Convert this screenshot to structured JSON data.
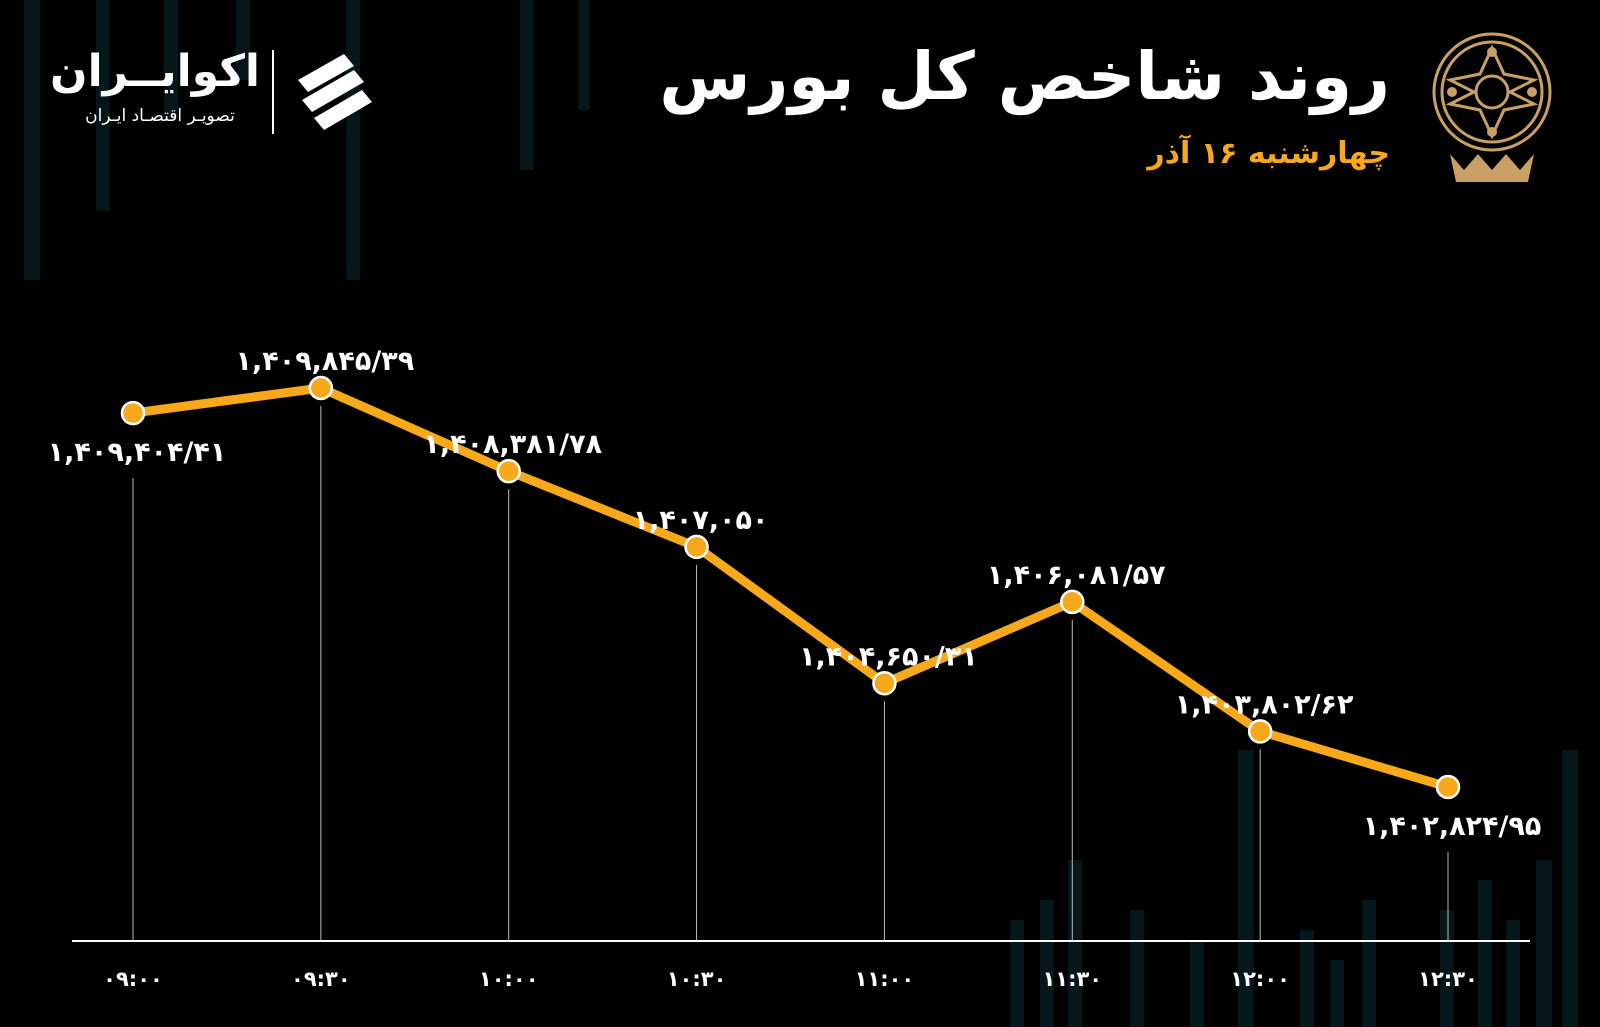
{
  "header": {
    "title": "روند شاخص کل بورس",
    "date": "چهارشنبه ۱۶ آذر"
  },
  "brand": {
    "name": "اکوایــران",
    "tagline": "تصویـر اقتصـاد ایـران",
    "logo_icon": "ecoiran-logo-icon",
    "emblem_icon": "tehran-stock-exchange-emblem-icon"
  },
  "colors": {
    "accent": "#f7a81b",
    "background": "#000000",
    "text": "#ffffff"
  },
  "chart_data": {
    "type": "line",
    "title": "روند شاخص کل بورس",
    "x": [
      "۰۹:۰۰",
      "۰۹:۳۰",
      "۱۰:۰۰",
      "۱۰:۳۰",
      "۱۱:۰۰",
      "۱۱:۳۰",
      "۱۲:۰۰",
      "۱۲:۳۰"
    ],
    "series": [
      {
        "values": [
          1409404.41,
          1409845.39,
          1408381.78,
          1407050,
          1404650.31,
          1406081.57,
          1403802.62,
          1402824.95
        ],
        "labels": [
          "۱,۴۰۹,۴۰۴/۴۱",
          "۱,۴۰۹,۸۴۵/۳۹",
          "۱,۴۰۸,۳۸۱/۷۸",
          "۱,۴۰۷,۰۵۰",
          "۱,۴۰۴,۶۵۰/۳۱",
          "۱,۴۰۶,۰۸۱/۵۷",
          "۱,۴۰۳,۸۰۲/۶۲",
          "۱,۴۰۲,۸۲۴/۹۵"
        ],
        "color": "#f7a81b"
      }
    ],
    "grid": false,
    "legend": "none"
  }
}
